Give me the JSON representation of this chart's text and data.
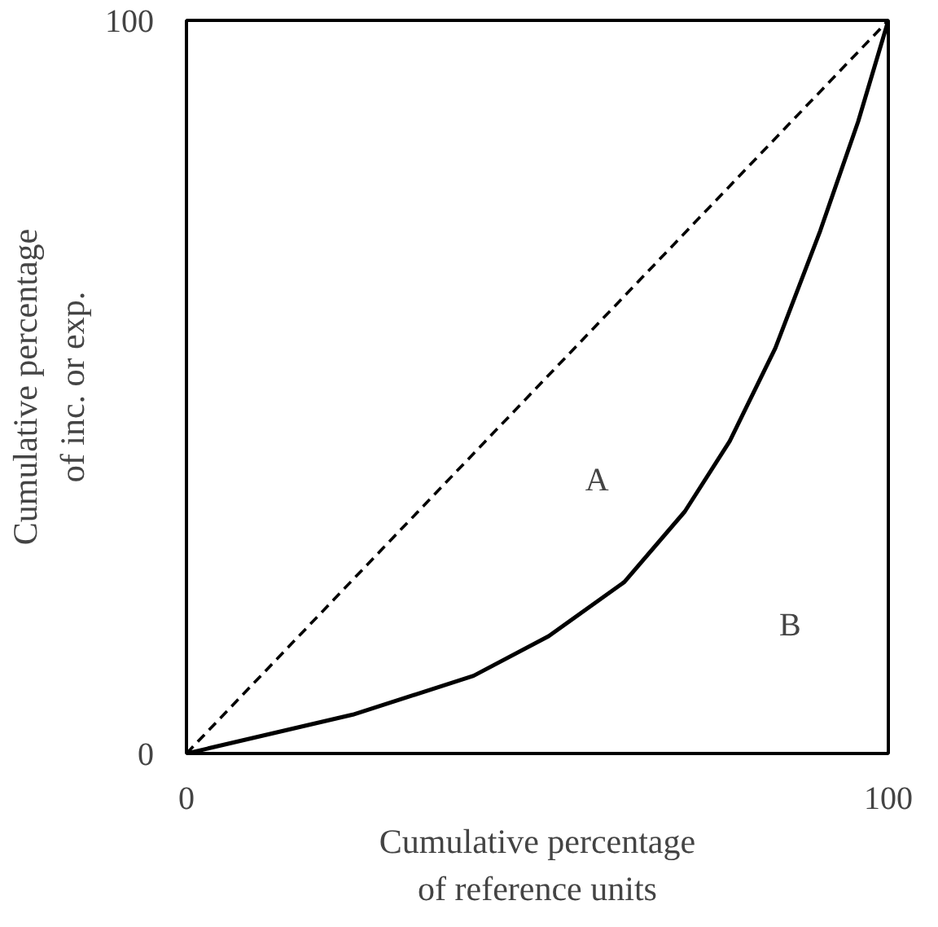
{
  "chart_data": {
    "type": "line",
    "xlabel": "Cumulative percentage\nof reference units",
    "ylabel": "Cumulative percentage\nof inc. or exp.",
    "xlim": [
      0,
      100
    ],
    "ylim": [
      0,
      100
    ],
    "xticks": [
      0,
      100
    ],
    "yticks": [
      0,
      100
    ],
    "marker": "none",
    "series": [
      {
        "color": "#000000",
        "line_style": "dashed",
        "x": [
          0,
          100
        ],
        "values": [
          0,
          100
        ]
      },
      {
        "color": "#000000",
        "line_style": "solid",
        "x": [
          0,
          23.7,
          40.9,
          51.6,
          62.4,
          71,
          77.4,
          83.9,
          90.3,
          95.7,
          100
        ],
        "values": [
          0,
          5.3,
          10.6,
          16,
          23.4,
          33,
          42.6,
          55.3,
          71.3,
          86.2,
          100
        ]
      }
    ],
    "annotations": [
      "A",
      "B"
    ]
  }
}
